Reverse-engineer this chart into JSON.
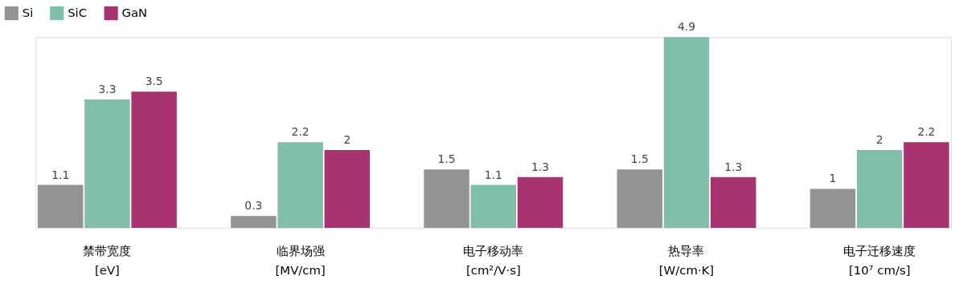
{
  "chart_data": {
    "type": "bar",
    "categories": [
      "禁带宽度\n[eV]",
      "临界场强\n[MV/cm]",
      "电子移动率\n[cm²/V·s]",
      "热导率\n[W/cm·K]",
      "电子迁移速度\n[10⁷ cm/s]"
    ],
    "series": [
      {
        "name": "Si",
        "color": "#939393",
        "values": [
          1.1,
          0.3,
          1.5,
          1.5,
          1
        ]
      },
      {
        "name": "SiC",
        "color": "#82bfa9",
        "values": [
          3.3,
          2.2,
          1.1,
          4.9,
          2
        ]
      },
      {
        "name": "GaN",
        "color": "#a8346f",
        "values": [
          3.5,
          2,
          1.3,
          1.3,
          2.2
        ]
      }
    ],
    "data_labels": true,
    "legend": "top left",
    "grid": false
  }
}
